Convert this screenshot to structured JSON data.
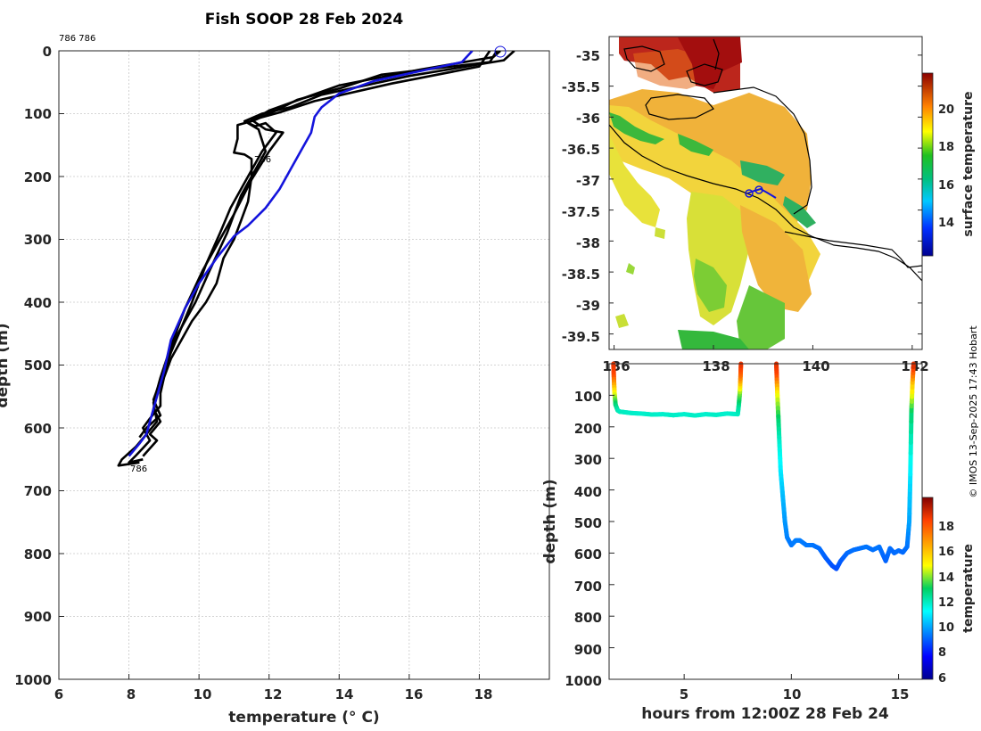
{
  "header": {
    "title": "Fish SOOP 28 Feb 2024",
    "probe_label": "786 786"
  },
  "credit": "© IMOS 13-Sep-2025 17:43 Hobart",
  "colors": {
    "profile_black": "#000000",
    "profile_blue": "#1414dc"
  },
  "chart_data": [
    {
      "id": "profile",
      "type": "line",
      "title": "Fish SOOP 28 Feb 2024",
      "xlabel": "temperature (° C)",
      "ylabel": "depth (m)",
      "xlim": [
        6,
        20
      ],
      "ylim": [
        1000,
        0
      ],
      "xticks": [
        6,
        8,
        10,
        12,
        14,
        16,
        18
      ],
      "yticks": [
        0,
        100,
        200,
        300,
        400,
        500,
        600,
        700,
        800,
        900,
        1000
      ],
      "grid": true,
      "annotations": [
        {
          "text": "786",
          "x": 11.6,
          "depth": 170
        },
        {
          "text": "786",
          "x": 8.0,
          "depth": 662
        }
      ],
      "series": [
        {
          "name": "profile-1",
          "color": "#000000",
          "x": [
            18.5,
            18.3,
            15.2,
            14.0,
            12.8,
            12.2,
            11.6,
            11.3,
            11.1,
            11.1,
            11.0,
            11.3,
            11.5,
            11.5,
            11.4,
            11.2,
            11.0,
            10.7,
            10.5,
            10.2,
            9.8,
            9.5,
            9.2,
            9.0,
            8.9,
            8.9,
            8.6,
            8.4,
            8.6,
            8.4,
            8.2,
            8.0,
            8.4
          ],
          "depth": [
            0,
            18,
            38,
            60,
            78,
            95,
            110,
            115,
            118,
            140,
            162,
            165,
            172,
            200,
            240,
            270,
            300,
            330,
            370,
            400,
            430,
            460,
            490,
            520,
            545,
            565,
            585,
            600,
            620,
            632,
            644,
            655,
            650
          ]
        },
        {
          "name": "profile-2",
          "color": "#000000",
          "x": [
            19.0,
            18.7,
            16.0,
            13.5,
            12.6,
            11.8,
            11.3,
            11.6,
            11.9,
            12.2,
            11.8,
            11.4,
            10.9,
            10.6,
            10.2,
            9.8,
            9.5,
            9.2,
            9.0,
            8.8,
            8.7,
            8.9,
            8.6,
            8.8,
            8.4
          ],
          "depth": [
            0,
            15,
            40,
            70,
            90,
            100,
            112,
            120,
            115,
            130,
            160,
            200,
            250,
            290,
            340,
            400,
            440,
            480,
            510,
            540,
            570,
            590,
            610,
            620,
            645
          ]
        },
        {
          "name": "profile-3",
          "color": "#000000",
          "x": [
            18.3,
            18.0,
            15.5,
            13.3,
            12.3,
            11.5,
            11.9,
            12.4,
            12.0,
            11.5,
            11.0,
            10.6,
            10.1,
            9.6,
            9.2,
            8.9,
            8.7,
            8.8,
            8.5,
            8.2,
            7.8,
            7.7,
            8.3
          ],
          "depth": [
            0,
            25,
            52,
            80,
            98,
            110,
            125,
            130,
            160,
            205,
            260,
            300,
            350,
            410,
            470,
            520,
            560,
            590,
            610,
            630,
            650,
            660,
            655
          ]
        },
        {
          "name": "profile-4",
          "color": "#000000",
          "x": [
            18.6,
            18.4,
            16.3,
            14.0,
            13.0,
            12.0,
            11.4,
            11.7,
            11.9,
            11.2,
            10.8,
            10.3,
            9.9,
            9.4,
            9.1,
            8.9,
            8.7,
            8.9,
            8.5,
            8.3
          ],
          "depth": [
            0,
            10,
            30,
            55,
            75,
            95,
            115,
            125,
            160,
            230,
            290,
            350,
            400,
            450,
            490,
            525,
            555,
            580,
            600,
            615
          ]
        },
        {
          "name": "profile-5",
          "color": "#1414dc",
          "x": [
            17.8,
            17.5,
            15.0,
            14.0,
            13.5,
            13.3,
            13.2,
            12.9,
            12.6,
            12.3,
            11.9,
            11.4,
            11.0,
            10.5,
            10.0,
            9.6,
            9.2,
            9.0,
            8.8,
            8.6,
            8.5,
            8.3,
            8.0
          ],
          "depth": [
            0,
            18,
            48,
            68,
            90,
            105,
            130,
            160,
            190,
            220,
            250,
            278,
            295,
            330,
            370,
            410,
            460,
            510,
            550,
            590,
            610,
            625,
            645
          ]
        }
      ]
    },
    {
      "id": "sst-map",
      "type": "heatmap",
      "xlim": [
        135.9,
        142.2
      ],
      "ylim": [
        -39.75,
        -34.7
      ],
      "xticks": [
        136,
        138,
        140,
        142
      ],
      "yticks": [
        -35,
        -35.5,
        -36,
        -36.5,
        -37,
        -37.5,
        -38,
        -38.5,
        -39,
        -39.5
      ],
      "colorbar": {
        "label": "surface temperature",
        "range": [
          12.2,
          22
        ],
        "ticks": [
          14,
          16,
          18,
          20
        ]
      }
    },
    {
      "id": "depth-time",
      "type": "scatter",
      "xlabel": "hours from 12:00Z 28 Feb 24",
      "ylabel": "depth (m)",
      "xlim": [
        1.5,
        16.1
      ],
      "ylim": [
        1000,
        0
      ],
      "xticks": [
        5,
        10,
        15
      ],
      "yticks": [
        100,
        200,
        300,
        400,
        500,
        600,
        700,
        800,
        900,
        1000
      ],
      "colorbar": {
        "label": "temperature",
        "range": [
          5.4,
          19.9
        ],
        "ticks": [
          6,
          8,
          10,
          12,
          14,
          16,
          18
        ]
      },
      "series": [
        {
          "name": "deployment-1",
          "t": [
            1.7,
            1.72,
            1.75,
            1.8,
            1.9,
            2.0,
            2.5,
            3.0,
            3.5,
            4.0,
            4.5,
            5.0,
            5.5,
            6.0,
            6.5,
            7.0,
            7.5,
            7.55,
            7.6,
            7.63,
            7.65
          ],
          "depth": [
            0,
            40,
            90,
            130,
            148,
            152,
            156,
            158,
            161,
            160,
            163,
            160,
            164,
            160,
            162,
            158,
            160,
            130,
            90,
            40,
            0
          ],
          "temp": [
            18.5,
            18.0,
            14.8,
            12.5,
            11.8,
            11.6,
            11.5,
            11.4,
            11.5,
            11.4,
            11.5,
            11.4,
            11.5,
            11.4,
            11.5,
            11.4,
            11.5,
            12.0,
            13.5,
            17.0,
            18.5
          ]
        },
        {
          "name": "deployment-2",
          "t": [
            9.3,
            9.32,
            9.35,
            9.4,
            9.45,
            9.5,
            9.6,
            9.7,
            9.8,
            10.0,
            10.2,
            10.4,
            10.7,
            11.0,
            11.3,
            11.6,
            11.9,
            12.1,
            12.3,
            12.6,
            12.9,
            13.2,
            13.5,
            13.8,
            14.1,
            14.4,
            14.6,
            14.8,
            15.0,
            15.2,
            15.4,
            15.5,
            15.55,
            15.6,
            15.65,
            15.7
          ],
          "depth": [
            0,
            40,
            100,
            180,
            260,
            340,
            420,
            500,
            550,
            575,
            560,
            560,
            575,
            575,
            585,
            615,
            640,
            650,
            625,
            600,
            590,
            585,
            580,
            590,
            580,
            625,
            585,
            600,
            592,
            598,
            580,
            500,
            350,
            150,
            60,
            0
          ],
          "temp": [
            18.6,
            18.0,
            14.5,
            12.5,
            11.3,
            10.6,
            9.9,
            9.4,
            9.1,
            8.9,
            9.0,
            9.0,
            8.9,
            8.9,
            8.8,
            8.6,
            8.4,
            8.3,
            8.5,
            8.7,
            8.8,
            8.8,
            8.9,
            8.8,
            8.9,
            8.6,
            8.8,
            8.7,
            8.8,
            8.7,
            8.8,
            9.5,
            10.5,
            12.5,
            15.5,
            18.8
          ]
        }
      ]
    }
  ],
  "panels": {
    "left": {
      "yticks": [
        "0",
        "100",
        "200",
        "300",
        "400",
        "500",
        "600",
        "700",
        "800",
        "900",
        "1000"
      ],
      "xticks": [
        "6",
        "8",
        "10",
        "12",
        "14",
        "16",
        "18"
      ],
      "xlabel": "temperature (° C)",
      "ylabel": "depth (m)"
    },
    "map": {
      "yticks": [
        "-35",
        "-35.5",
        "-36",
        "-36.5",
        "-37",
        "-37.5",
        "-38",
        "-38.5",
        "-39",
        "-39.5"
      ],
      "xticks": [
        "136",
        "138",
        "140",
        "142"
      ],
      "cbar_ticks": [
        "14",
        "16",
        "18",
        "20"
      ],
      "cbar_label": "surface temperature"
    },
    "depth": {
      "yticks": [
        "100",
        "200",
        "300",
        "400",
        "500",
        "600",
        "700",
        "800",
        "900",
        "1000"
      ],
      "xticks": [
        "5",
        "10",
        "15"
      ],
      "xlabel": "hours from 12:00Z 28 Feb 24",
      "ylabel": "depth (m)",
      "cbar_ticks": [
        "6",
        "8",
        "10",
        "12",
        "14",
        "16",
        "18"
      ],
      "cbar_label": "temperature"
    }
  }
}
